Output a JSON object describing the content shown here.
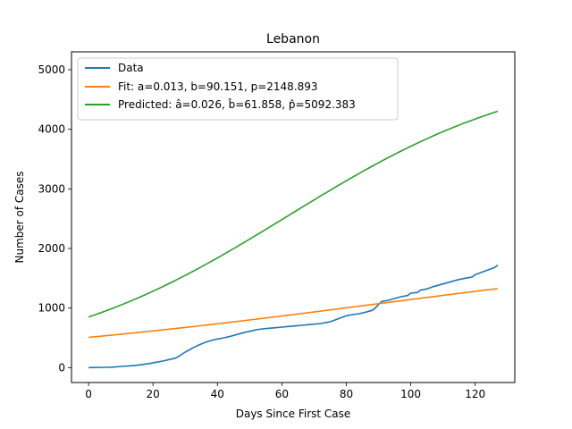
{
  "chart_data": {
    "type": "line",
    "title": "Lebanon",
    "xlabel": "Days Since First Case",
    "ylabel": "Number of Cases",
    "xlim": [
      -5.3,
      132.3
    ],
    "ylim": [
      -250,
      5300
    ],
    "xticks": [
      0,
      20,
      40,
      60,
      80,
      100,
      120
    ],
    "yticks": [
      0,
      1000,
      2000,
      3000,
      4000,
      5000
    ],
    "grid": false,
    "legend_position": "top-left",
    "series": [
      {
        "name": "Data",
        "color": "#1f77b4",
        "x": [
          0,
          5,
          8,
          10,
          13,
          15,
          17,
          19,
          21,
          23,
          25,
          27,
          28,
          30,
          32,
          34,
          36,
          38,
          40,
          42,
          44,
          46,
          48,
          50,
          52,
          54,
          56,
          58,
          60,
          62,
          64,
          66,
          68,
          70,
          72,
          74,
          75,
          77,
          79,
          80,
          82,
          84,
          86,
          88,
          89,
          90,
          91,
          93,
          95,
          97,
          99,
          100,
          102,
          103,
          105,
          107,
          109,
          111,
          113,
          115,
          117,
          119,
          120,
          122,
          124,
          126,
          127
        ],
        "y": [
          0,
          5,
          10,
          20,
          30,
          40,
          55,
          70,
          90,
          110,
          135,
          160,
          190,
          260,
          320,
          375,
          420,
          455,
          480,
          500,
          525,
          555,
          585,
          610,
          635,
          650,
          660,
          670,
          680,
          690,
          700,
          710,
          720,
          730,
          740,
          760,
          770,
          810,
          850,
          870,
          890,
          905,
          930,
          960,
          1000,
          1060,
          1110,
          1130,
          1160,
          1190,
          1210,
          1250,
          1260,
          1300,
          1320,
          1360,
          1390,
          1420,
          1450,
          1480,
          1500,
          1520,
          1560,
          1600,
          1640,
          1680,
          1720
        ]
      },
      {
        "name": "Fit: a=0.013, b=90.151, p=2148.893",
        "color": "#ff7f0e",
        "function": {
          "a": 0.013,
          "b": 90.151,
          "p": 2148.893
        },
        "x_range": [
          0,
          127
        ]
      },
      {
        "name": "Predicted: â=0.026, b̂=61.858, p̂=5092.383",
        "color": "#2ca02c",
        "function": {
          "a": 0.026,
          "b": 61.858,
          "p": 5092.383
        },
        "x_range": [
          0,
          127
        ]
      }
    ]
  }
}
